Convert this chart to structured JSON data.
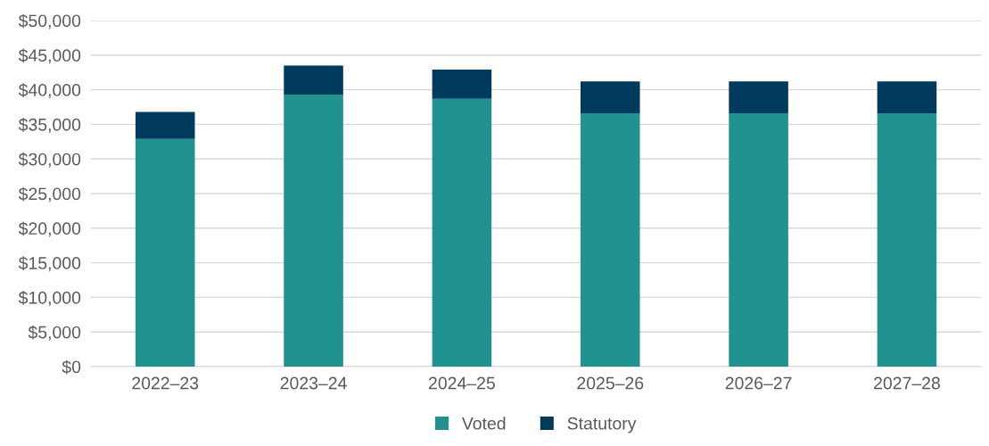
{
  "chart_data": {
    "type": "bar",
    "stacked": true,
    "categories": [
      "2022–23",
      "2023–24",
      "2024–25",
      "2025–26",
      "2026–27",
      "2027–28"
    ],
    "series": [
      {
        "name": "Voted",
        "color": "#20928f",
        "values": [
          32900,
          39300,
          38700,
          36600,
          36600,
          36600
        ]
      },
      {
        "name": "Statutory",
        "color": "#003a5d",
        "values": [
          3900,
          4200,
          4200,
          4600,
          4600,
          4600
        ]
      }
    ],
    "ylim": [
      0,
      50000
    ],
    "yticks": [
      {
        "value": 0,
        "label": "$0"
      },
      {
        "value": 5000,
        "label": "$5,000"
      },
      {
        "value": 10000,
        "label": "$10,000"
      },
      {
        "value": 15000,
        "label": "$15,000"
      },
      {
        "value": 20000,
        "label": "$20,000"
      },
      {
        "value": 25000,
        "label": "$25,000"
      },
      {
        "value": 30000,
        "label": "$30,000"
      },
      {
        "value": 35000,
        "label": "$35,000"
      },
      {
        "value": 40000,
        "label": "$40,000"
      },
      {
        "value": 45000,
        "label": "$45,000"
      },
      {
        "value": 50000,
        "label": "$50,000"
      }
    ],
    "grid": "y",
    "legend": "bottom"
  }
}
